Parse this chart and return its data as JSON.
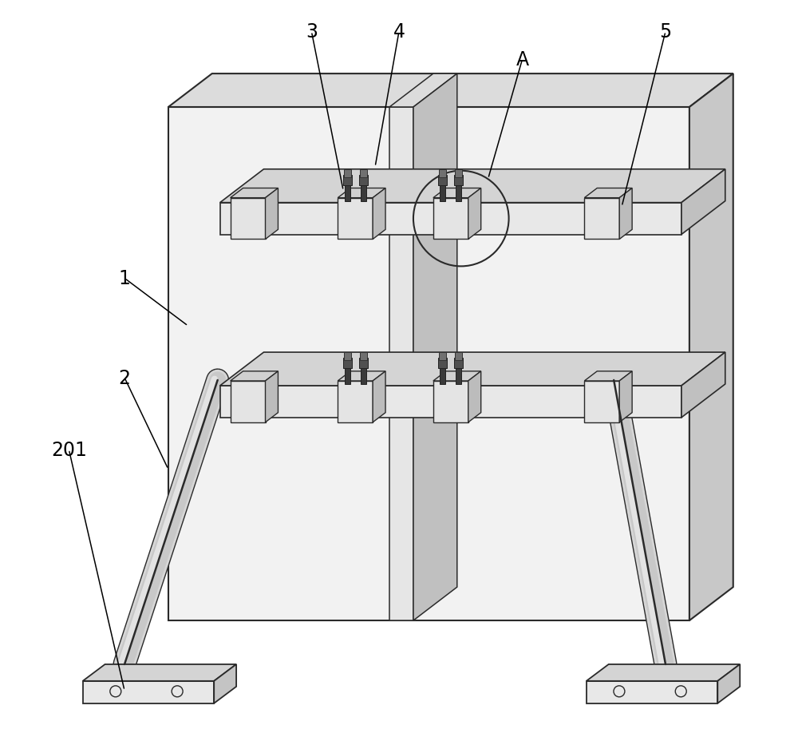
{
  "bg_color": "#ffffff",
  "line_color": "#2a2a2a",
  "panel_face": "#f2f2f2",
  "panel_top": "#dcdcdc",
  "panel_right": "#c8c8c8",
  "rail_face": "#e8e8e8",
  "rail_top": "#d4d4d4",
  "rail_right": "#c0c0c0",
  "block_face": "#e4e4e4",
  "block_top": "#d0d0d0",
  "block_right": "#bcbcbc",
  "bolt_dark": "#444444",
  "bolt_mid": "#666666",
  "brace_face": "#e0e0e0",
  "base_face": "#e8e8e8",
  "base_top": "#d4d4d4",
  "base_right": "#c4c4c4",
  "label_fontsize": 17,
  "ann_lw": 1.1
}
